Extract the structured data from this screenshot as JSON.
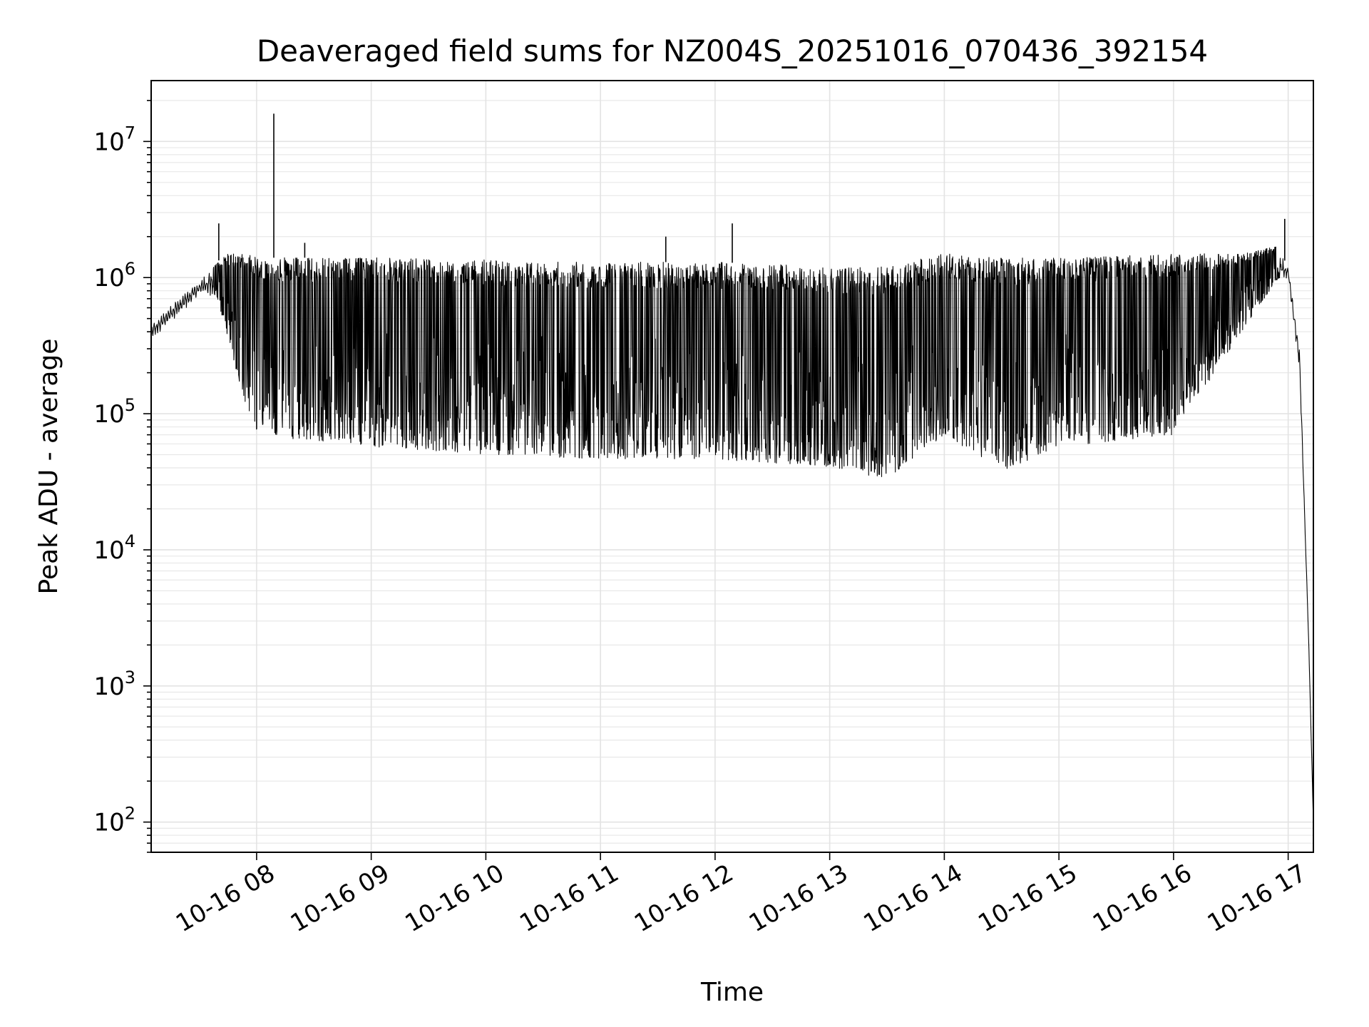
{
  "chart_data": {
    "type": "line",
    "title": "Deaveraged field sums for NZ004S_20251016_070436_392154",
    "xlabel": "Time",
    "ylabel": "Peak ADU - average",
    "yscale": "log",
    "ylim": [
      60,
      28000000
    ],
    "xlim_hours": [
      7.08,
      17.22
    ],
    "grid": true,
    "line_color": "#000000",
    "x_ticks": [
      {
        "value": 8,
        "label": "10-16 08"
      },
      {
        "value": 9,
        "label": "10-16 09"
      },
      {
        "value": 10,
        "label": "10-16 10"
      },
      {
        "value": 11,
        "label": "10-16 11"
      },
      {
        "value": 12,
        "label": "10-16 12"
      },
      {
        "value": 13,
        "label": "10-16 13"
      },
      {
        "value": 14,
        "label": "10-16 14"
      },
      {
        "value": 15,
        "label": "10-16 15"
      },
      {
        "value": 16,
        "label": "10-16 16"
      },
      {
        "value": 17,
        "label": "10-16 17"
      }
    ],
    "y_ticks": [
      {
        "value": 100,
        "base": "10",
        "exp": "2"
      },
      {
        "value": 1000,
        "base": "10",
        "exp": "3"
      },
      {
        "value": 10000,
        "base": "10",
        "exp": "4"
      },
      {
        "value": 100000,
        "base": "10",
        "exp": "5"
      },
      {
        "value": 1000000,
        "base": "10",
        "exp": "6"
      },
      {
        "value": 10000000,
        "base": "10",
        "exp": "7"
      }
    ],
    "series": [
      {
        "name": "field sums",
        "envelope_hours": [
          7.08,
          7.3,
          7.5,
          7.65,
          7.75,
          7.9,
          8.0,
          8.2,
          8.5,
          9.0,
          10.0,
          11.0,
          12.0,
          13.0,
          13.5,
          14.0,
          14.5,
          15.0,
          16.0,
          16.6,
          16.9,
          17.0,
          17.1,
          17.18,
          17.22
        ],
        "envelope_low": [
          350000,
          500000,
          750000,
          700000,
          300000,
          90000,
          55000,
          45000,
          45000,
          40000,
          35000,
          32000,
          32000,
          28000,
          22000,
          50000,
          25000,
          40000,
          50000,
          350000,
          900000,
          1000000,
          200000,
          2000,
          100
        ],
        "envelope_high": [
          450000,
          700000,
          950000,
          1300000,
          1500000,
          1500000,
          1400000,
          1400000,
          1400000,
          1400000,
          1350000,
          1300000,
          1300000,
          1200000,
          1200000,
          1500000,
          1400000,
          1400000,
          1500000,
          1500000,
          1700000,
          1200000,
          300000,
          2000,
          100
        ],
        "spikes": [
          {
            "x": 8.15,
            "y": 16000000
          },
          {
            "x": 7.67,
            "y": 2500000
          },
          {
            "x": 8.42,
            "y": 1800000
          },
          {
            "x": 11.57,
            "y": 2000000
          },
          {
            "x": 12.15,
            "y": 2500000
          },
          {
            "x": 16.97,
            "y": 2700000
          }
        ]
      }
    ]
  }
}
